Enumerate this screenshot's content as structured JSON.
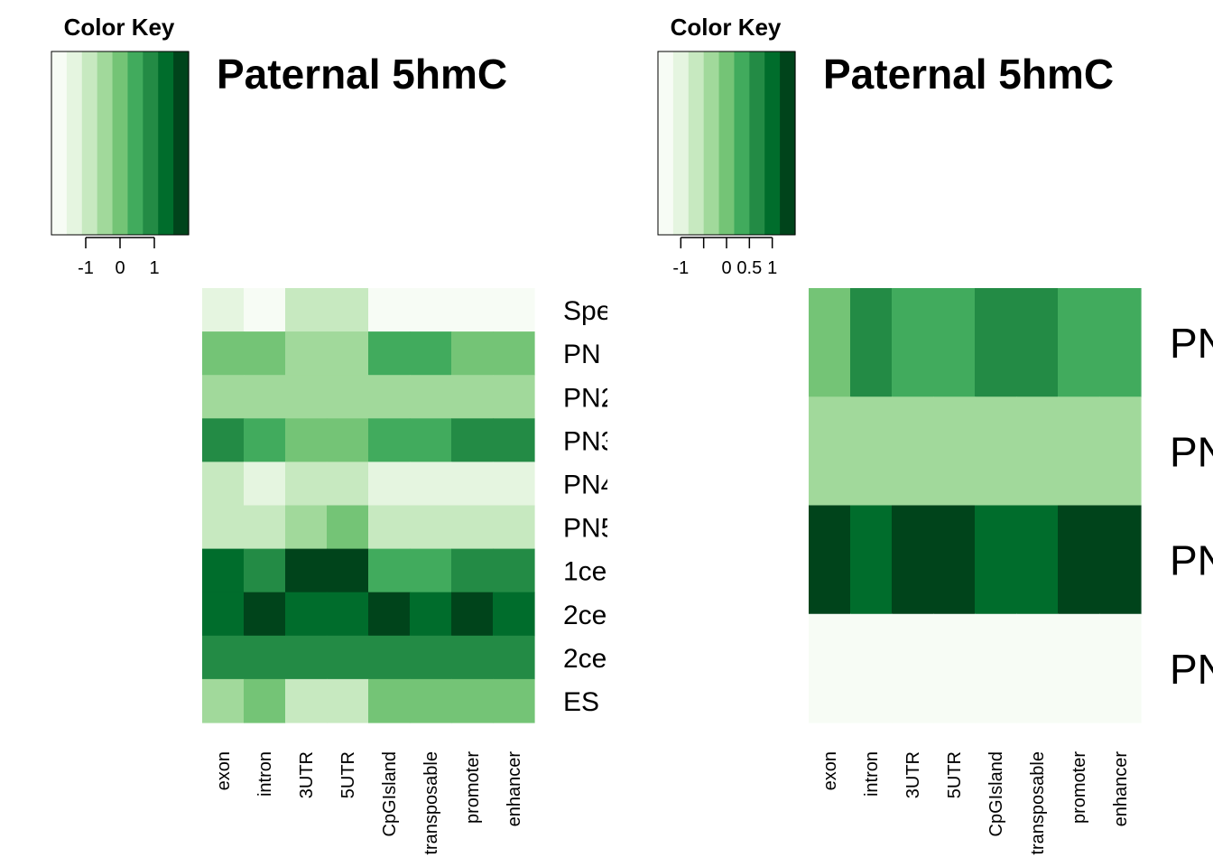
{
  "palette": [
    "#F7FCF5",
    "#E5F5E0",
    "#C7E9C0",
    "#A1D99B",
    "#74C476",
    "#41AB5D",
    "#238B45",
    "#006D2C",
    "#00441B"
  ],
  "chart_data": [
    {
      "type": "heatmap",
      "title": "Paternal 5hmC",
      "color_key_title": "Color Key",
      "color_key_ticks": [
        "-1",
        "0",
        "1"
      ],
      "color_key_tick_values": [
        -1,
        0,
        1
      ],
      "color_key_range": [
        -2,
        2
      ],
      "columns": [
        "exon",
        "intron",
        "3UTR",
        "5UTR",
        "CpGIsland",
        "transposable",
        "promoter",
        "enhancer"
      ],
      "rows": [
        "Spe",
        "PN",
        "PN2",
        "PN3",
        "PN4",
        "PN5",
        "1ce",
        "2ce",
        "2ce",
        "ES"
      ],
      "level_matrix": [
        [
          1,
          0,
          2,
          2,
          0,
          0,
          0,
          0
        ],
        [
          4,
          4,
          3,
          3,
          5,
          5,
          4,
          4
        ],
        [
          3,
          3,
          3,
          3,
          3,
          3,
          3,
          3
        ],
        [
          6,
          5,
          4,
          4,
          5,
          5,
          6,
          6
        ],
        [
          2,
          1,
          2,
          2,
          1,
          1,
          1,
          1
        ],
        [
          2,
          2,
          3,
          4,
          2,
          2,
          2,
          2
        ],
        [
          7,
          6,
          8,
          8,
          5,
          5,
          6,
          6
        ],
        [
          7,
          8,
          7,
          7,
          8,
          7,
          8,
          7
        ],
        [
          6,
          6,
          6,
          6,
          6,
          6,
          6,
          6
        ],
        [
          3,
          4,
          2,
          2,
          4,
          4,
          4,
          4
        ]
      ]
    },
    {
      "type": "heatmap",
      "title": "Paternal 5hmC",
      "color_key_title": "Color Key",
      "color_key_ticks": [
        "-1",
        "0",
        "0.5",
        "1"
      ],
      "color_key_tick_values": [
        -1,
        0,
        0.5,
        1
      ],
      "color_key_range": [
        -1.5,
        1.5
      ],
      "columns": [
        "exon",
        "intron",
        "3UTR",
        "5UTR",
        "CpGIsland",
        "transposable",
        "promoter",
        "enhancer"
      ],
      "rows": [
        "PN",
        "PN",
        "PN",
        "PN"
      ],
      "level_matrix": [
        [
          4,
          6,
          5,
          5,
          6,
          6,
          5,
          5
        ],
        [
          3,
          3,
          3,
          3,
          3,
          3,
          3,
          3
        ],
        [
          8,
          7,
          8,
          8,
          7,
          7,
          8,
          8
        ],
        [
          0,
          0,
          0,
          0,
          0,
          0,
          0,
          0
        ]
      ]
    }
  ]
}
